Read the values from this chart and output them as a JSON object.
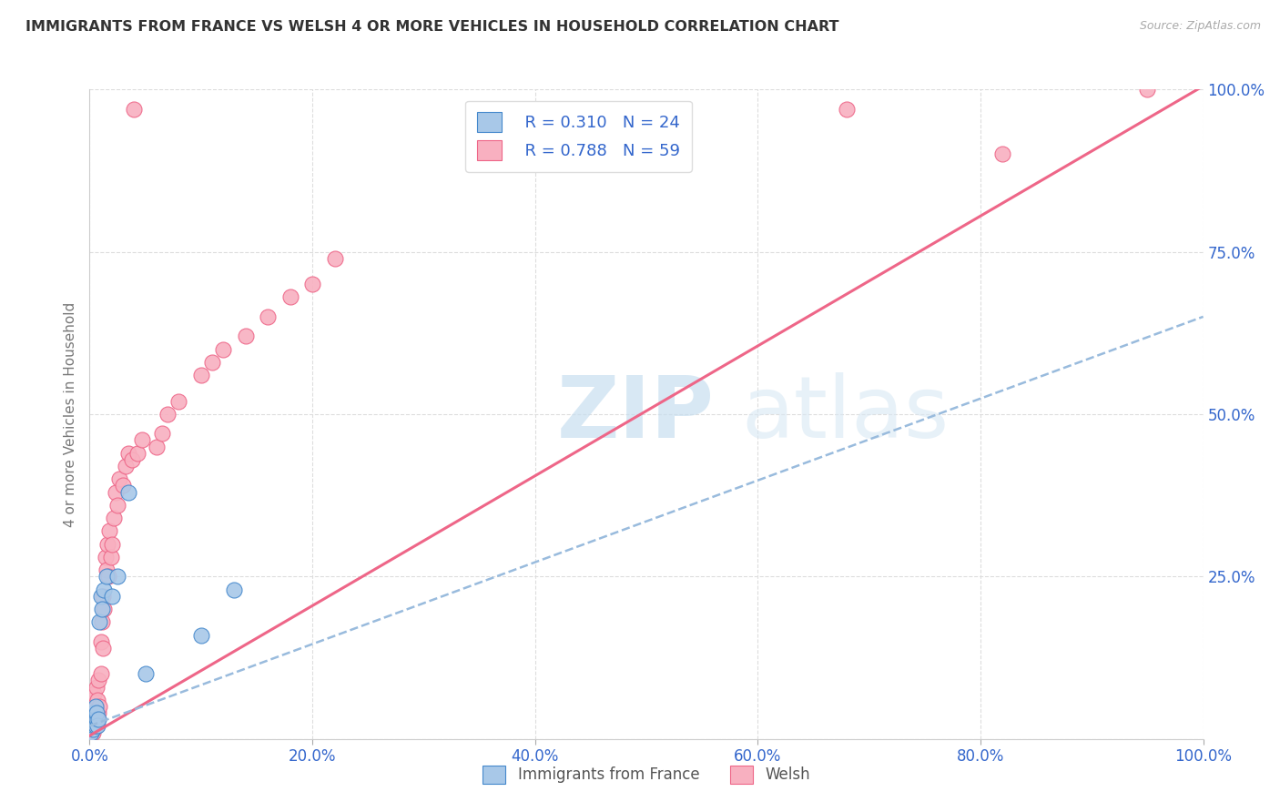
{
  "title": "IMMIGRANTS FROM FRANCE VS WELSH 4 OR MORE VEHICLES IN HOUSEHOLD CORRELATION CHART",
  "source": "Source: ZipAtlas.com",
  "ylabel": "4 or more Vehicles in Household",
  "legend_r1": "R = 0.310",
  "legend_n1": "N = 24",
  "legend_r2": "R = 0.788",
  "legend_n2": "N = 59",
  "color_blue": "#a8c8e8",
  "color_pink": "#f8b0c0",
  "line_blue": "#4488cc",
  "line_pink": "#ee6688",
  "line_dashed_color": "#99bbdd",
  "watermark_zip": "ZIP",
  "watermark_atlas": "atlas",
  "france_x": [
    0.001,
    0.002,
    0.002,
    0.003,
    0.003,
    0.004,
    0.004,
    0.005,
    0.005,
    0.006,
    0.006,
    0.007,
    0.008,
    0.009,
    0.01,
    0.011,
    0.013,
    0.015,
    0.02,
    0.025,
    0.035,
    0.05,
    0.1,
    0.13
  ],
  "france_y": [
    0.01,
    0.02,
    0.03,
    0.015,
    0.04,
    0.02,
    0.03,
    0.02,
    0.05,
    0.03,
    0.04,
    0.02,
    0.03,
    0.18,
    0.22,
    0.2,
    0.23,
    0.25,
    0.22,
    0.25,
    0.38,
    0.1,
    0.16,
    0.23
  ],
  "welsh_x": [
    0.001,
    0.001,
    0.002,
    0.002,
    0.002,
    0.003,
    0.003,
    0.003,
    0.004,
    0.004,
    0.004,
    0.005,
    0.005,
    0.006,
    0.006,
    0.007,
    0.007,
    0.008,
    0.008,
    0.009,
    0.01,
    0.01,
    0.011,
    0.012,
    0.012,
    0.013,
    0.014,
    0.015,
    0.016,
    0.017,
    0.018,
    0.019,
    0.02,
    0.022,
    0.023,
    0.025,
    0.027,
    0.03,
    0.032,
    0.035,
    0.038,
    0.04,
    0.043,
    0.047,
    0.06,
    0.065,
    0.07,
    0.08,
    0.1,
    0.11,
    0.12,
    0.14,
    0.16,
    0.18,
    0.2,
    0.22,
    0.68,
    0.82,
    0.95
  ],
  "welsh_y": [
    0.01,
    0.03,
    0.02,
    0.04,
    0.06,
    0.01,
    0.03,
    0.05,
    0.02,
    0.04,
    0.07,
    0.03,
    0.05,
    0.02,
    0.08,
    0.03,
    0.06,
    0.04,
    0.09,
    0.05,
    0.1,
    0.15,
    0.18,
    0.14,
    0.22,
    0.2,
    0.28,
    0.26,
    0.3,
    0.25,
    0.32,
    0.28,
    0.3,
    0.34,
    0.38,
    0.36,
    0.4,
    0.39,
    0.42,
    0.44,
    0.43,
    0.97,
    0.44,
    0.46,
    0.45,
    0.47,
    0.5,
    0.52,
    0.56,
    0.58,
    0.6,
    0.62,
    0.65,
    0.68,
    0.7,
    0.74,
    0.97,
    0.9,
    1.0
  ],
  "pink_line_x": [
    0.0,
    1.0
  ],
  "pink_line_y": [
    0.005,
    1.005
  ],
  "blue_line_x": [
    0.0,
    1.0
  ],
  "blue_line_y": [
    0.02,
    0.65
  ],
  "xticks": [
    0.0,
    0.2,
    0.4,
    0.6,
    0.8,
    1.0
  ],
  "xtick_labels": [
    "0.0%",
    "20.0%",
    "40.0%",
    "60.0%",
    "80.0%",
    "100.0%"
  ],
  "yticks": [
    0.0,
    0.25,
    0.5,
    0.75,
    1.0
  ],
  "ytick_labels": [
    "",
    "25.0%",
    "50.0%",
    "75.0%",
    "100.0%"
  ]
}
